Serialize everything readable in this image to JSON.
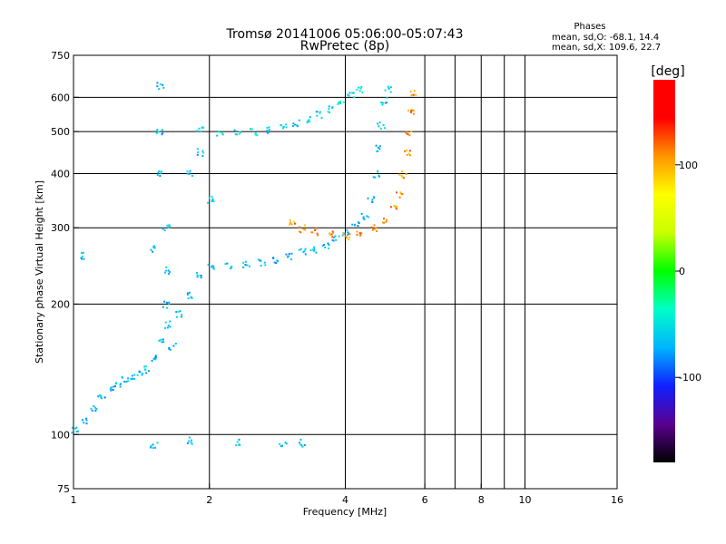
{
  "chart_data": {
    "type": "scatter",
    "title": "Tromsø 20141006 05:06:00-05:07:43",
    "subtitle": "RwPretec (8p)",
    "stats": {
      "heading": "Phases",
      "line_o": "mean, sd,O: -68.1, 14.4",
      "line_x": "mean, sd,X: 109.6, 22.7"
    },
    "xlabel": "Frequency [MHz]",
    "ylabel": "Stationary phase Virtual Height [km]",
    "x_scale": "log",
    "y_scale": "log",
    "xlim": [
      1,
      16
    ],
    "ylim": [
      75,
      750
    ],
    "x_ticks": [
      {
        "value": 1,
        "label": "1"
      },
      {
        "value": 2,
        "label": "2"
      },
      {
        "value": 4,
        "label": "4"
      },
      {
        "value": 6,
        "label": "6"
      },
      {
        "value": 8,
        "label": "8"
      },
      {
        "value": 10,
        "label": "10"
      },
      {
        "value": 16,
        "label": "16"
      }
    ],
    "x_gridlines": [
      1,
      2,
      4,
      6,
      8,
      10,
      16
    ],
    "x_minor_ticks": [
      7,
      9
    ],
    "y_ticks": [
      {
        "value": 75,
        "label": "75"
      },
      {
        "value": 100,
        "label": "100"
      },
      {
        "value": 200,
        "label": "200"
      },
      {
        "value": 300,
        "label": "300"
      },
      {
        "value": 400,
        "label": "400"
      },
      {
        "value": 500,
        "label": "500"
      },
      {
        "value": 600,
        "label": "600"
      },
      {
        "value": 750,
        "label": "750"
      }
    ],
    "y_gridlines": [
      100,
      200,
      300,
      400,
      500,
      600
    ],
    "grid": true,
    "colorbar": {
      "label": "[deg]",
      "range": [
        -180,
        180
      ],
      "ticks": [
        {
          "value": 100,
          "label": "100"
        },
        {
          "value": 0,
          "label": "0"
        },
        {
          "value": -100,
          "label": "-100"
        }
      ],
      "colors": [
        "#000000",
        "#5a0090",
        "#1020ff",
        "#00b4ff",
        "#00ffc8",
        "#00ff00",
        "#c8ff00",
        "#ffff00",
        "#ff9600",
        "#ff0000",
        "#ff0000"
      ]
    },
    "traces": [
      {
        "desc": "O-mode F-layer trace (phase approx -68 deg)",
        "phase": -68,
        "points": [
          [
            1.0,
            103
          ],
          [
            1.05,
            108
          ],
          [
            1.1,
            115
          ],
          [
            1.15,
            122
          ],
          [
            1.2,
            128
          ],
          [
            1.25,
            132
          ],
          [
            1.3,
            135
          ],
          [
            1.35,
            136
          ],
          [
            1.4,
            138
          ],
          [
            1.45,
            142
          ],
          [
            1.5,
            150
          ],
          [
            1.55,
            165
          ],
          [
            1.6,
            180
          ],
          [
            1.7,
            190
          ],
          [
            1.8,
            210
          ],
          [
            1.9,
            235
          ],
          [
            2.0,
            245
          ],
          [
            2.2,
            245
          ],
          [
            2.4,
            247
          ],
          [
            2.6,
            250
          ],
          [
            2.8,
            254
          ],
          [
            3.0,
            258
          ],
          [
            3.2,
            265
          ],
          [
            3.4,
            268
          ],
          [
            3.6,
            275
          ],
          [
            3.8,
            285
          ],
          [
            4.0,
            295
          ],
          [
            4.2,
            305
          ],
          [
            4.4,
            320
          ],
          [
            4.55,
            350
          ],
          [
            4.65,
            400
          ],
          [
            4.72,
            460
          ],
          [
            4.78,
            520
          ],
          [
            4.85,
            590
          ],
          [
            4.95,
            630
          ]
        ]
      },
      {
        "desc": "Second-hop O-mode trace near 500 km",
        "phase": -55,
        "points": [
          [
            1.9,
            505
          ],
          [
            2.1,
            500
          ],
          [
            2.3,
            498
          ],
          [
            2.5,
            500
          ],
          [
            2.7,
            505
          ],
          [
            2.9,
            515
          ],
          [
            3.1,
            525
          ],
          [
            3.3,
            535
          ],
          [
            3.5,
            548
          ],
          [
            3.7,
            565
          ],
          [
            3.9,
            585
          ],
          [
            4.1,
            610
          ],
          [
            4.3,
            630
          ]
        ]
      },
      {
        "desc": "X-mode F-layer trace (phase approx 110 deg)",
        "phase": 110,
        "points": [
          [
            3.05,
            310
          ],
          [
            3.2,
            300
          ],
          [
            3.4,
            295
          ],
          [
            3.7,
            292
          ],
          [
            4.0,
            288
          ],
          [
            4.3,
            292
          ],
          [
            4.6,
            300
          ],
          [
            4.9,
            315
          ],
          [
            5.1,
            335
          ],
          [
            5.25,
            360
          ],
          [
            5.35,
            400
          ],
          [
            5.45,
            450
          ],
          [
            5.52,
            500
          ],
          [
            5.58,
            560
          ],
          [
            5.63,
            620
          ]
        ]
      },
      {
        "desc": "Dense low-frequency cluster and E-layer band",
        "phase": -65,
        "points": [
          [
            1.55,
            640
          ],
          [
            1.55,
            500
          ],
          [
            1.55,
            400
          ],
          [
            1.6,
            300
          ],
          [
            1.6,
            240
          ],
          [
            1.6,
            200
          ],
          [
            1.65,
            160
          ],
          [
            1.8,
            400
          ],
          [
            1.9,
            450
          ],
          [
            2.0,
            350
          ],
          [
            1.5,
            270
          ],
          [
            1.05,
            260
          ],
          [
            1.5,
            95
          ],
          [
            1.8,
            97
          ],
          [
            2.3,
            96
          ],
          [
            2.9,
            96
          ],
          [
            3.2,
            96
          ]
        ]
      }
    ]
  }
}
